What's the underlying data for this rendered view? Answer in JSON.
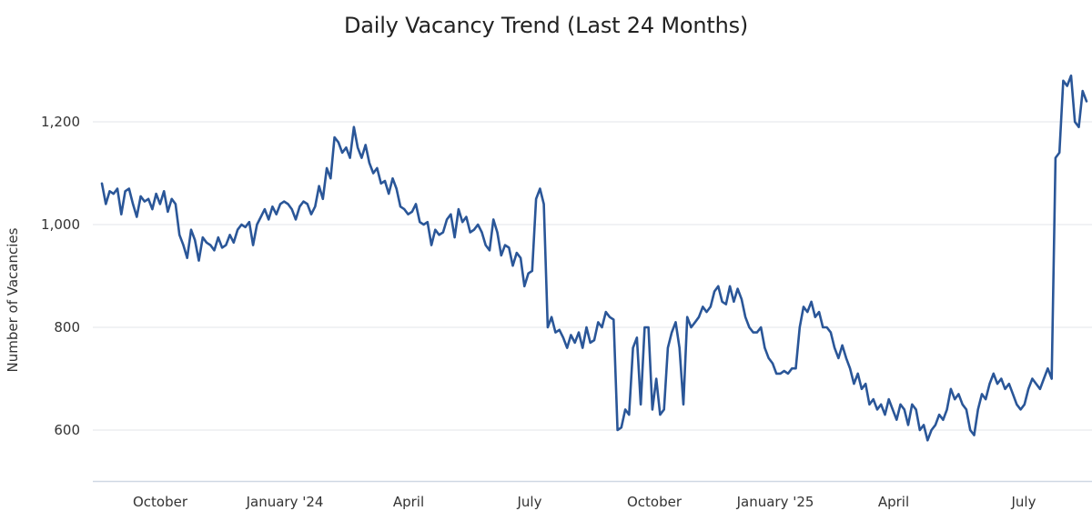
{
  "chart_data": {
    "type": "line",
    "title": "Daily Vacancy Trend (Last 24 Months)",
    "xlabel": "",
    "ylabel": "Number of Vacancies",
    "ylim": [
      500,
      1320
    ],
    "yticks": [
      600,
      800,
      1000,
      1200
    ],
    "ytick_labels": [
      "600",
      "800",
      "1,000",
      "1,200"
    ],
    "xtick_labels": [
      "October",
      "January '24",
      "April",
      "July",
      "October",
      "January '25",
      "April",
      "July"
    ],
    "grid": true,
    "legend": null,
    "line_color": "#2a5698",
    "x_note": "approx. one point every ~3 days from mid-Sep 2023 to mid-Aug 2025",
    "series": [
      {
        "name": "Vacancies",
        "values": [
          1080,
          1040,
          1065,
          1060,
          1070,
          1020,
          1065,
          1070,
          1040,
          1015,
          1055,
          1045,
          1050,
          1030,
          1060,
          1040,
          1065,
          1025,
          1050,
          1040,
          980,
          960,
          935,
          990,
          970,
          930,
          975,
          965,
          960,
          950,
          975,
          955,
          960,
          980,
          965,
          990,
          1000,
          995,
          1005,
          960,
          1000,
          1015,
          1030,
          1010,
          1035,
          1020,
          1040,
          1045,
          1040,
          1030,
          1010,
          1035,
          1045,
          1040,
          1020,
          1035,
          1075,
          1050,
          1110,
          1090,
          1170,
          1160,
          1140,
          1150,
          1130,
          1190,
          1150,
          1130,
          1155,
          1120,
          1100,
          1110,
          1080,
          1085,
          1060,
          1090,
          1070,
          1035,
          1030,
          1020,
          1025,
          1040,
          1005,
          1000,
          1005,
          960,
          990,
          980,
          985,
          1010,
          1020,
          975,
          1030,
          1005,
          1015,
          985,
          990,
          1000,
          985,
          960,
          950,
          1010,
          985,
          940,
          960,
          955,
          920,
          945,
          935,
          880,
          905,
          910,
          1050,
          1070,
          1040,
          800,
          820,
          790,
          795,
          780,
          760,
          785,
          770,
          790,
          760,
          800,
          770,
          775,
          810,
          800,
          830,
          820,
          815,
          600,
          605,
          640,
          630,
          760,
          780,
          650,
          800,
          800,
          640,
          700,
          630,
          640,
          760,
          790,
          810,
          760,
          650,
          820,
          800,
          810,
          820,
          840,
          830,
          840,
          870,
          880,
          850,
          845,
          880,
          850,
          875,
          855,
          820,
          800,
          790,
          790,
          800,
          760,
          740,
          730,
          710,
          710,
          715,
          710,
          720,
          720,
          800,
          840,
          830,
          850,
          820,
          830,
          800,
          800,
          790,
          760,
          740,
          765,
          740,
          720,
          690,
          710,
          680,
          690,
          650,
          660,
          640,
          650,
          630,
          660,
          640,
          620,
          650,
          640,
          610,
          650,
          640,
          600,
          610,
          580,
          600,
          610,
          630,
          620,
          640,
          680,
          660,
          670,
          650,
          640,
          600,
          590,
          640,
          670,
          660,
          690,
          710,
          690,
          700,
          680,
          690,
          670,
          650,
          640,
          650,
          680,
          700,
          690,
          680,
          700,
          720,
          700,
          1130,
          1140,
          1280,
          1270,
          1290,
          1200,
          1190,
          1260,
          1240
        ]
      }
    ]
  }
}
